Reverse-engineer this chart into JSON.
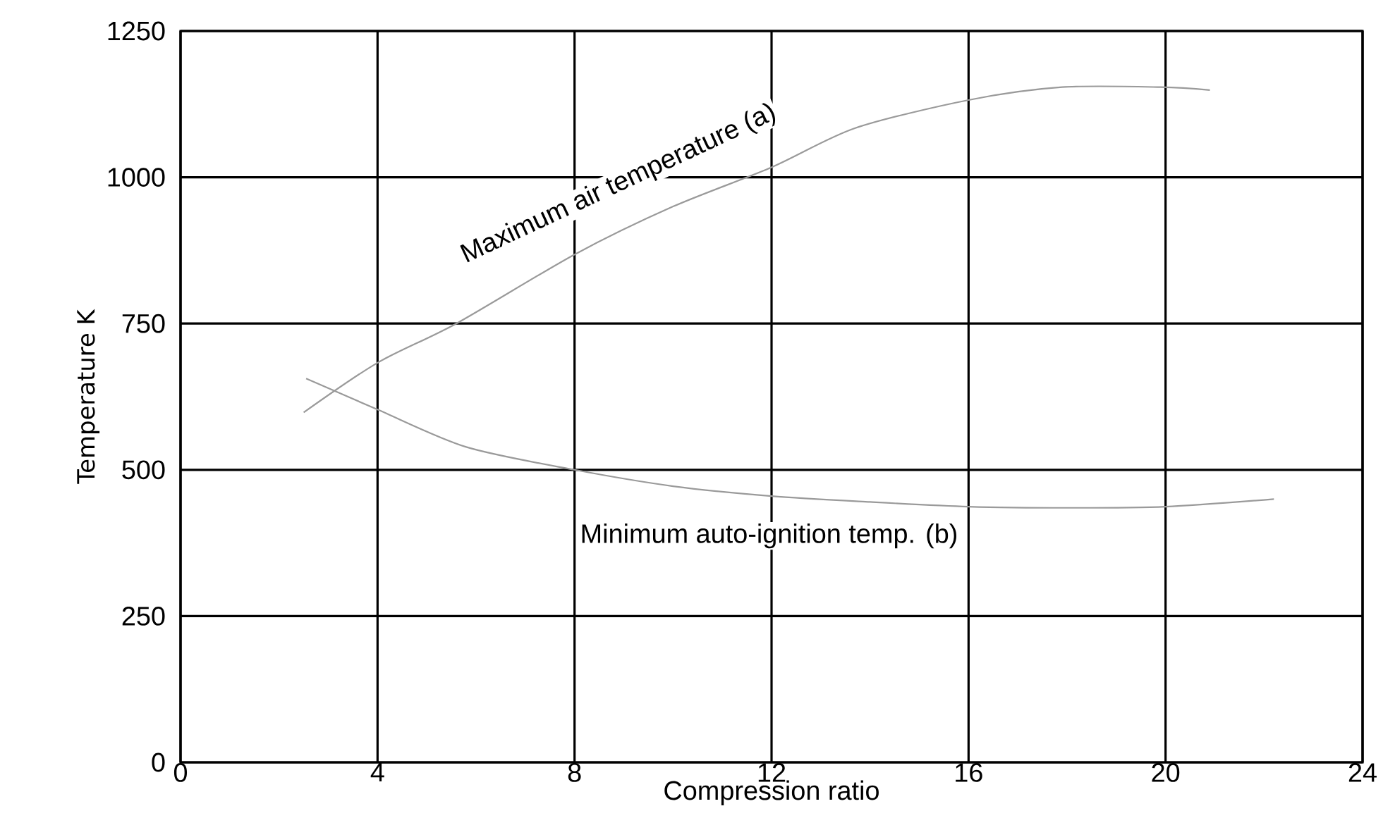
{
  "chart_data": {
    "type": "line",
    "xlabel": "Compression ratio",
    "ylabel": "Temperature K",
    "xlim": [
      0,
      24
    ],
    "xticks": [
      0,
      4,
      8,
      12,
      16,
      20,
      24
    ],
    "ylim": [
      0,
      1250
    ],
    "yticks": [
      0,
      250,
      500,
      750,
      1000,
      1250
    ],
    "grid": true,
    "marker": "none",
    "line_style": "solid",
    "series": [
      {
        "name": "Maximum air temperature (a)",
        "color": "#9a9a9a",
        "x": [
          2.5,
          4,
          5.6,
          8,
          10,
          12,
          13.7,
          16,
          17.9,
          19.9,
          20.9
        ],
        "values": [
          598,
          683,
          750,
          868,
          950,
          1017,
          1084,
          1132,
          1154,
          1154,
          1149
        ]
      },
      {
        "name": "Minimum auto-ignition temp. (b)",
        "color": "#9a9a9a",
        "x": [
          2.55,
          4,
          5.8,
          8,
          10,
          12,
          14,
          16,
          18,
          20,
          22.2
        ],
        "values": [
          656,
          603,
          539,
          500,
          472,
          455,
          445,
          437,
          435,
          437,
          450
        ]
      }
    ]
  }
}
